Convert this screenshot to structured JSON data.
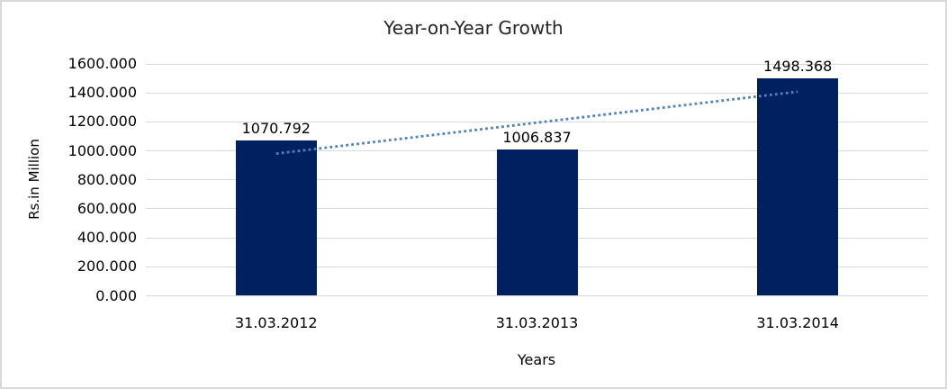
{
  "chart_data": {
    "type": "bar",
    "title": "Year-on-Year Growth",
    "xlabel": "Years",
    "ylabel": "Rs.in Million",
    "categories": [
      "31.03.2012",
      "31.03.2013",
      "31.03.2014"
    ],
    "values": [
      1070.792,
      1006.837,
      1498.368
    ],
    "data_labels": [
      "1070.792",
      "1006.837",
      "1498.368"
    ],
    "ylim": [
      0,
      1600
    ],
    "ytick_step": 200,
    "ytick_labels": [
      "0.000",
      "200.000",
      "400.000",
      "600.000",
      "800.000",
      "1000.000",
      "1200.000",
      "1400.000",
      "1600.000"
    ],
    "grid": true,
    "legend": "none",
    "trendline": {
      "type": "linear",
      "style": "dotted"
    },
    "colors": {
      "bar": "#002060",
      "trendline": "#4F81BD",
      "gridline": "#D9D9D9",
      "border": "#D9D9D9",
      "text": "#000000",
      "background": "#FFFFFF"
    }
  }
}
